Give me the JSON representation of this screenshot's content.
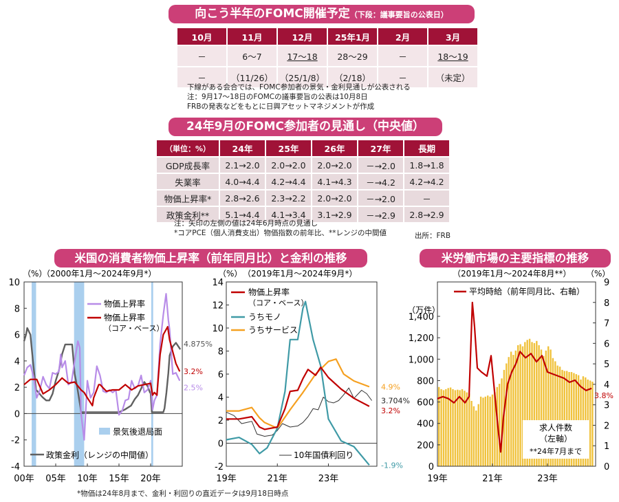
{
  "top_table": {
    "title": "向こう半年のFOMC開催予定",
    "title_sub": "（下段：議事要旨の公表日）",
    "headers": [
      "10月",
      "11月",
      "12月",
      "25年1月",
      "2月",
      "3月"
    ],
    "row1": [
      "－",
      "6〜7",
      "17〜18",
      "28〜29",
      "－",
      "18〜19"
    ],
    "row2": [
      "－",
      "（11/26）",
      "（25/1/8）",
      "（2/18）",
      "－",
      "（未定）"
    ],
    "notes": [
      "下線がある会合では、FOMC参加者の景気・金利見通しが公表される",
      "注：9月17〜18日のFOMCの議事要旨の公表は10月8日",
      "FRBの発表などをもとに日興アセットマネジメントが作成"
    ]
  },
  "projection_table": {
    "title": "24年9月のFOMC参加者の見通し（中央値）",
    "headers": [
      "（単位：%）",
      "24年",
      "25年",
      "26年",
      "27年",
      "長期"
    ],
    "rows": [
      [
        "GDP成長率",
        "2.1→2.0",
        "2.0→2.0",
        "2.0→2.0",
        "－→2.0",
        "1.8→1.8"
      ],
      [
        "失業率",
        "4.0→4.4",
        "4.2→4.4",
        "4.1→4.3",
        "－→4.2",
        "4.2→4.2"
      ],
      [
        "物価上昇率*",
        "2.8→2.6",
        "2.3→2.2",
        "2.0→2.0",
        "－→2.0",
        "－"
      ],
      [
        "政策金利**",
        "5.1→4.4",
        "4.1→3.4",
        "3.1→2.9",
        "－→2.9",
        "2.8→2.9"
      ]
    ],
    "notes": [
      "注：矢印の左側の値は24年6月時点の見通し",
      "*コアPCE（個人消費支出）物価指数の前年比、**レンジの中間値"
    ],
    "source": "出所：FRB"
  },
  "left_section_title": "米国の消費者物価上昇率（前年同月比）と金利の推移",
  "right_section_title": "米労働市場の主要指標の推移",
  "footnote": "*物価は24年8月まで、金利・利回りの直近データは9月18日時点",
  "colors": {
    "purple": "#b88ce8",
    "red": "#c00000",
    "teal": "#3f9aa6",
    "orange": "#f5a020",
    "gray": "#606060",
    "thin": "#333333",
    "bar": "#f0c23c",
    "recession": "#aacfee",
    "banner": "#cc3f77",
    "header": "#a01237"
  },
  "chart_data": [
    {
      "type": "line",
      "unit": "（%）",
      "period": "（2000年1月〜2024年9月*）",
      "x_labels": [
        "00年",
        "05年",
        "10年",
        "15年",
        "20年"
      ],
      "ylim": [
        -4,
        10
      ],
      "y_ticks": [
        "-4",
        "-2",
        "0",
        "2",
        "4",
        "6",
        "8",
        "10"
      ],
      "legend": [
        "物価上昇率",
        "物価上昇率",
        "（コア・ベース）",
        "景気後退局面",
        "政策金利（レンジの中間値）"
      ],
      "recessions": [
        [
          2001.2,
          2001.9
        ],
        [
          2007.9,
          2009.5
        ],
        [
          2020.1,
          2020.4
        ]
      ],
      "series": [
        {
          "name": "物価上昇率",
          "color": "#b88ce8",
          "end_label": "2.5%",
          "x": [
            2000,
            2000.5,
            2001,
            2001.5,
            2002,
            2002.5,
            2003,
            2003.5,
            2004,
            2004.5,
            2005,
            2005.5,
            2005.8,
            2006,
            2006.5,
            2007,
            2007.5,
            2008,
            2008.5,
            2008.8,
            2009,
            2009.5,
            2010,
            2010.5,
            2011,
            2011.5,
            2012,
            2012.5,
            2013,
            2013.5,
            2014,
            2014.5,
            2015,
            2015.5,
            2016,
            2016.5,
            2017,
            2017.5,
            2018,
            2018.5,
            2019,
            2019.5,
            2020,
            2020.3,
            2020.6,
            2021,
            2021.5,
            2022,
            2022.45,
            2022.8,
            2023,
            2023.5,
            2024,
            2024.6
          ],
          "y": [
            2.9,
            3.5,
            3.7,
            2.8,
            1.2,
            1.8,
            2.8,
            2.2,
            1.9,
            3.1,
            3.0,
            3.2,
            4.5,
            3.5,
            4.0,
            2.2,
            2.4,
            4.0,
            5.5,
            5.0,
            0.0,
            -2.0,
            2.5,
            1.2,
            1.6,
            3.6,
            2.9,
            1.7,
            1.6,
            1.8,
            1.6,
            1.8,
            -0.1,
            0.2,
            1.0,
            1.1,
            2.5,
            1.9,
            2.1,
            2.9,
            1.6,
            1.8,
            2.5,
            0.3,
            1.0,
            1.4,
            5.3,
            7.5,
            9.1,
            7.1,
            6.4,
            3.0,
            3.1,
            2.5
          ]
        },
        {
          "name": "物価上昇率（コア・ベース）",
          "color": "#c00000",
          "end_label": "3.2%",
          "x": [
            2000,
            2001,
            2002,
            2003,
            2004,
            2005,
            2006,
            2007,
            2008,
            2009,
            2009.5,
            2010,
            2010.8,
            2011,
            2011.8,
            2012,
            2013,
            2014,
            2015,
            2016,
            2017,
            2018,
            2019,
            2020,
            2020.3,
            2020.6,
            2021,
            2021.5,
            2022,
            2022.7,
            2023,
            2023.5,
            2024,
            2024.6
          ],
          "y": [
            2.2,
            2.6,
            2.6,
            1.5,
            1.8,
            2.2,
            2.7,
            2.3,
            2.4,
            1.8,
            1.6,
            1.2,
            0.6,
            1.2,
            2.2,
            2.2,
            1.7,
            1.8,
            1.8,
            2.2,
            1.8,
            2.1,
            2.2,
            2.3,
            1.4,
            1.6,
            1.4,
            4.5,
            6.0,
            6.6,
            5.6,
            4.7,
            3.8,
            3.2
          ]
        },
        {
          "name": "政策金利（レンジの中間値）",
          "color": "#606060",
          "end_label": "4.875%",
          "x": [
            2000,
            2000.3,
            2000.5,
            2001,
            2001.4,
            2001.9,
            2002,
            2002.9,
            2003.5,
            2004,
            2004.5,
            2005,
            2005.5,
            2006,
            2006.5,
            2007,
            2007.6,
            2008,
            2008.4,
            2008.9,
            2009,
            2015,
            2015.9,
            2016.9,
            2017.5,
            2018,
            2018.5,
            2019,
            2019.5,
            2019.9,
            2020,
            2020.2,
            2022,
            2022.2,
            2022.5,
            2022.8,
            2023,
            2023.5,
            2024,
            2024.7
          ],
          "y": [
            5.5,
            6.0,
            6.5,
            6.0,
            4.0,
            1.75,
            1.75,
            1.25,
            1.0,
            1.0,
            1.5,
            2.5,
            3.25,
            4.5,
            5.25,
            5.25,
            5.25,
            3.0,
            2.0,
            0.5,
            0.1,
            0.1,
            0.3,
            0.6,
            1.1,
            1.4,
            1.9,
            2.4,
            2.1,
            1.6,
            1.6,
            0.1,
            0.1,
            0.4,
            1.6,
            3.1,
            4.4,
            5.1,
            5.375,
            4.875
          ]
        }
      ]
    },
    {
      "type": "line",
      "unit": "（%）",
      "period": "（2019年1月〜2024年9月*）",
      "x_labels": [
        "19年",
        "21年",
        "23年"
      ],
      "ylim": [
        -2,
        14
      ],
      "y_ticks": [
        "-2",
        "0",
        "2",
        "4",
        "6",
        "8",
        "10",
        "12",
        "14"
      ],
      "legend": [
        "物価上昇率",
        "（コア・ベース）",
        "うちモノ",
        "うちサービス",
        "10年国債利回り"
      ],
      "series": [
        {
          "name": "物価上昇率（コア・ベース）",
          "color": "#c00000",
          "end_label": "3.2%",
          "x": [
            2019,
            2019.5,
            2020,
            2020.3,
            2020.5,
            2021,
            2021.3,
            2021.5,
            2021.8,
            2022,
            2022.2,
            2022.5,
            2022.7,
            2023,
            2023.5,
            2024,
            2024.6
          ],
          "y": [
            2.1,
            2.1,
            2.3,
            1.4,
            1.2,
            1.4,
            3.0,
            4.5,
            4.6,
            5.6,
            6.4,
            5.9,
            6.6,
            5.7,
            4.7,
            3.9,
            3.2
          ]
        },
        {
          "name": "うちモノ",
          "color": "#3f9aa6",
          "end_label": "-1.9%",
          "x": [
            2019,
            2019.5,
            2020,
            2020.3,
            2020.6,
            2021,
            2021.3,
            2021.5,
            2021.8,
            2022,
            2022.1,
            2022.4,
            2022.7,
            2023,
            2023.5,
            2024,
            2024.6
          ],
          "y": [
            0.3,
            0.5,
            -0.1,
            -0.9,
            -0.4,
            1.3,
            4.5,
            9.0,
            9.0,
            11.7,
            12.3,
            9.0,
            6.7,
            2.1,
            0.2,
            -0.3,
            -1.9
          ]
        },
        {
          "name": "うちサービス",
          "color": "#f5a020",
          "end_label": "4.9%",
          "x": [
            2019,
            2019.5,
            2020,
            2020.3,
            2020.5,
            2021,
            2021.5,
            2022,
            2022.5,
            2023,
            2023.3,
            2023.6,
            2024,
            2024.6
          ],
          "y": [
            2.8,
            2.8,
            3.1,
            2.2,
            1.8,
            1.3,
            2.9,
            4.4,
            6.0,
            7.1,
            7.3,
            6.0,
            5.4,
            4.9
          ]
        },
        {
          "name": "10年国債利回り",
          "color": "#333333",
          "end_label": "3.704%",
          "x": [
            2019,
            2019.3,
            2019.6,
            2019.8,
            2020,
            2020.2,
            2020.5,
            2020.8,
            2021,
            2021.2,
            2021.5,
            2021.8,
            2022,
            2022.2,
            2022.4,
            2022.6,
            2022.8,
            2023,
            2023.2,
            2023.4,
            2023.6,
            2023.8,
            2024,
            2024.3,
            2024.5,
            2024.7
          ],
          "y": [
            2.7,
            2.4,
            1.7,
            1.8,
            1.9,
            0.8,
            0.6,
            0.7,
            1.1,
            1.7,
            1.4,
            1.5,
            1.8,
            2.3,
            3.0,
            2.9,
            4.0,
            3.6,
            3.5,
            3.7,
            4.2,
            4.8,
            3.9,
            4.6,
            4.3,
            3.704
          ]
        }
      ]
    },
    {
      "type": "bar+line",
      "left_unit": "（万件）",
      "right_unit": "（%）",
      "period": "（2019年1月〜2024年8月**）",
      "x_labels": [
        "19年",
        "21年",
        "23年"
      ],
      "left_ylim": [
        0,
        1400
      ],
      "left_ticks": [
        "0",
        "200",
        "400",
        "600",
        "800",
        "1,000",
        "1,200",
        "1,400"
      ],
      "right_ylim": [
        0,
        9
      ],
      "right_ticks": [
        "0",
        "1",
        "2",
        "3",
        "4",
        "5",
        "6",
        "7",
        "8",
        "9"
      ],
      "bar_series": {
        "name": "求人件数",
        "label_lines": [
          "求人件数",
          "（左軸）",
          "**24年7月まで"
        ],
        "color": "#f0c23c",
        "values": [
          740,
          720,
          710,
          720,
          730,
          735,
          720,
          710,
          715,
          710,
          720,
          705,
          690,
          680,
          610,
          560,
          520,
          580,
          650,
          640,
          650,
          660,
          650,
          670,
          690,
          740,
          770,
          820,
          900,
          960,
          1020,
          1070,
          1040,
          1080,
          1130,
          1140,
          1120,
          1160,
          1180,
          1190,
          1160,
          1150,
          1170,
          1130,
          1090,
          1030,
          1080,
          1120,
          1090,
          1010,
          980,
          940,
          930,
          900,
          890,
          890,
          880,
          880,
          870,
          860,
          850,
          810,
          840,
          830,
          810,
          800,
          790
        ]
      },
      "line_series": {
        "name": "平均時給（前年同月比、右軸）",
        "color": "#c00000",
        "end_label": "3.8%",
        "x": [
          2019,
          2019.2,
          2019.4,
          2019.6,
          2019.8,
          2020,
          2020.15,
          2020.27,
          2020.35,
          2020.45,
          2020.6,
          2020.8,
          2020.95,
          2021.05,
          2021.2,
          2021.3,
          2021.4,
          2021.55,
          2021.7,
          2021.85,
          2022,
          2022.2,
          2022.4,
          2022.6,
          2022.8,
          2023,
          2023.2,
          2023.4,
          2023.6,
          2023.8,
          2024,
          2024.2,
          2024.4,
          2024.6
        ],
        "y": [
          3.3,
          3.4,
          3.3,
          3.1,
          3.4,
          3.1,
          3.4,
          8.0,
          6.8,
          4.8,
          4.6,
          4.4,
          5.4,
          4.0,
          1.9,
          0.7,
          2.4,
          4.0,
          4.6,
          5.0,
          5.6,
          5.3,
          5.5,
          5.1,
          5.4,
          4.6,
          4.5,
          4.4,
          4.3,
          4.1,
          4.2,
          3.9,
          3.7,
          3.8
        ]
      }
    }
  ]
}
